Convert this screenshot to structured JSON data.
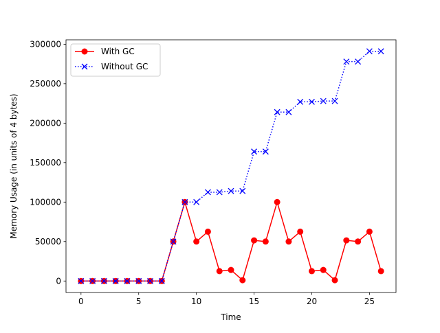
{
  "chart_data": {
    "type": "line",
    "title": "",
    "xlabel": "Time",
    "ylabel": "Memory Usage (in units of 4 bytes)",
    "xlim": [
      -1.3,
      27.3
    ],
    "ylim": [
      -14550,
      305550
    ],
    "xticks": [
      0,
      5,
      10,
      15,
      20,
      25
    ],
    "xtick_labels": [
      "0",
      "5",
      "10",
      "15",
      "20",
      "25"
    ],
    "yticks": [
      0,
      50000,
      100000,
      150000,
      200000,
      250000,
      300000
    ],
    "ytick_labels": [
      "0",
      "50000",
      "100000",
      "150000",
      "200000",
      "250000",
      "300000"
    ],
    "grid": false,
    "legend": "upper-left",
    "x": [
      0,
      1,
      2,
      3,
      4,
      5,
      6,
      7,
      8,
      9,
      10,
      11,
      12,
      13,
      14,
      15,
      16,
      17,
      18,
      19,
      20,
      21,
      22,
      23,
      24,
      25,
      26
    ],
    "series": [
      {
        "name": "With GC",
        "color": "#ff0000",
        "line_style": "solid",
        "marker": "circle",
        "values": [
          0,
          0,
          0,
          0,
          0,
          0,
          0,
          0,
          50000,
          100000,
          50000,
          62500,
          12500,
          14000,
          1000,
          51500,
          50000,
          100000,
          50000,
          62500,
          12500,
          14000,
          1000,
          51500,
          50000,
          62500,
          12500
        ]
      },
      {
        "name": "Without GC",
        "color": "#0000ff",
        "line_style": "dotted",
        "marker": "x",
        "values": [
          0,
          0,
          0,
          0,
          0,
          0,
          0,
          0,
          50000,
          100000,
          100000,
          112500,
          112500,
          114000,
          114000,
          164000,
          164000,
          214000,
          214000,
          227000,
          227000,
          228000,
          228000,
          278000,
          278000,
          291000,
          291000
        ]
      }
    ]
  }
}
